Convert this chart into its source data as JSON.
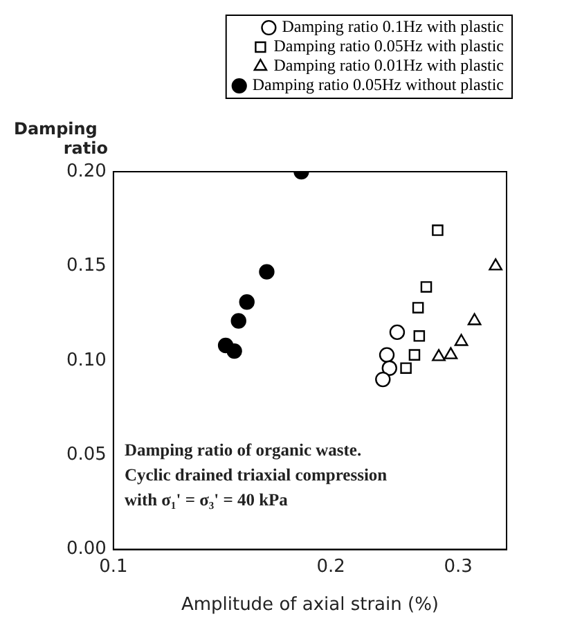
{
  "chart_data": {
    "type": "scatter",
    "xlabel": "Amplitude of axial strain (%)",
    "ylabel": "Damping ratio",
    "log": "x",
    "xlim": [
      0.1,
      0.35
    ],
    "xticks": [
      0.1,
      0.2,
      0.3
    ],
    "ylim": [
      0,
      0.2
    ],
    "yticks": [
      {
        "value": 0,
        "label": "0.00"
      },
      0.05,
      {
        "value": 0.1,
        "label": "0.10"
      },
      0.15,
      {
        "value": 0.2,
        "label": "0.20"
      }
    ],
    "grid": false,
    "legend": "top",
    "annotations": [
      "Damping ratio of organic waste.",
      "Cyclic drained triaxial compression",
      "with σ₁' = σ₃' = 40 kPa"
    ],
    "series": [
      {
        "name": "Damping ratio 0.1Hz with plastic",
        "color": "#000000",
        "marker": "circle",
        "x": [
          0.247,
          0.239,
          0.241,
          0.236
        ],
        "values": [
          0.115,
          0.103,
          0.096,
          0.09
        ]
      },
      {
        "name": "Damping ratio 0.05Hz with plastic",
        "color": "#000000",
        "marker": "square",
        "x": [
          0.281,
          0.271,
          0.264,
          0.265,
          0.261,
          0.254
        ],
        "values": [
          0.169,
          0.139,
          0.128,
          0.113,
          0.103,
          0.096
        ]
      },
      {
        "name": "Damping ratio 0.01Hz with plastic",
        "color": "#000000",
        "marker": "triangle",
        "x": [
          0.338,
          0.316,
          0.303,
          0.293,
          0.282
        ],
        "values": [
          0.15,
          0.121,
          0.11,
          0.103,
          0.102
        ]
      },
      {
        "name": "Damping ratio 0.05Hz without plastic",
        "color": "#000000",
        "marker": "circle",
        "x": [
          0.182,
          0.163,
          0.153,
          0.149,
          0.143,
          0.147
        ],
        "values": [
          0.2,
          0.147,
          0.131,
          0.121,
          0.108,
          0.105
        ]
      }
    ]
  }
}
